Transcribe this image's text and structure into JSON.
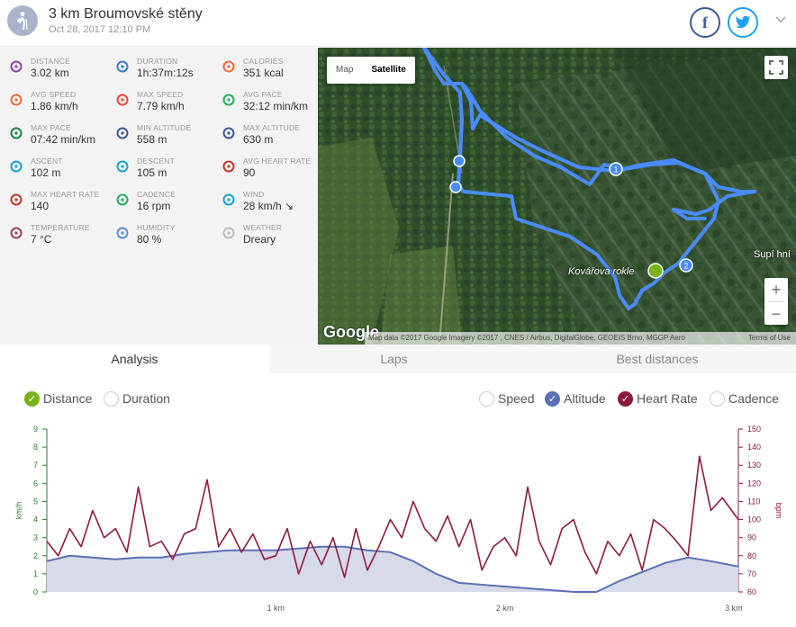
{
  "header": {
    "title": "3 km Broumovské stěny",
    "date": "Oct 28, 2017 12:10 PM"
  },
  "stats": [
    {
      "label": "DISTANCE",
      "value": "3.02 km",
      "icon": "distance-icon",
      "color": "#8e44ad"
    },
    {
      "label": "DURATION",
      "value": "1h:37m:12s",
      "icon": "stopwatch-icon",
      "color": "#3a7bd5"
    },
    {
      "label": "CALORIES",
      "value": "351 kcal",
      "icon": "flame-icon",
      "color": "#f06a3c"
    },
    {
      "label": "AVG SPEED",
      "value": "1.86 km/h",
      "icon": "speedometer-icon",
      "color": "#f06a3c"
    },
    {
      "label": "MAX SPEED",
      "value": "7.79 km/h",
      "icon": "speedometer-max-icon",
      "color": "#e74c3c"
    },
    {
      "label": "AVG PACE",
      "value": "32:12 min/km",
      "icon": "pace-icon",
      "color": "#27ae60"
    },
    {
      "label": "MAX PACE",
      "value": "07:42 min/km",
      "icon": "pace-max-icon",
      "color": "#1e8449"
    },
    {
      "label": "MIN ALTITUDE",
      "value": "558 m",
      "icon": "mountain-icon",
      "color": "#3b5998"
    },
    {
      "label": "MAX ALTITUDE",
      "value": "630 m",
      "icon": "mountain-peak-icon",
      "color": "#3b5998"
    },
    {
      "label": "ASCENT",
      "value": "102 m",
      "icon": "ascent-icon",
      "color": "#1a9fd0"
    },
    {
      "label": "DESCENT",
      "value": "105 m",
      "icon": "descent-icon",
      "color": "#1a9fd0"
    },
    {
      "label": "AVG HEART RATE",
      "value": "90",
      "icon": "heart-pulse-icon",
      "color": "#c0392b"
    },
    {
      "label": "MAX HEART RATE",
      "value": "140",
      "icon": "heart-icon",
      "color": "#c0392b"
    },
    {
      "label": "CADENCE",
      "value": "16 rpm",
      "icon": "cadence-icon",
      "color": "#27ae60"
    },
    {
      "label": "WIND",
      "value": "28 km/h ↘",
      "icon": "wind-icon",
      "color": "#1a9fd0"
    },
    {
      "label": "TEMPERATURE",
      "value": "7 °C",
      "icon": "thermometer-icon",
      "color": "#a04060"
    },
    {
      "label": "HUMIDITY",
      "value": "80 %",
      "icon": "droplets-icon",
      "color": "#5b8fd6"
    },
    {
      "label": "WEATHER",
      "value": "Dreary",
      "icon": "cloud-icon",
      "color": "#bbbbbb"
    }
  ],
  "map": {
    "type_map": "Map",
    "type_satellite": "Satellite",
    "google": "Google",
    "attribution": "Map data ©2017 Google Imagery ©2017 , CNES / Airbus, DigitalGlobe, GEOEIS Brno, MGGP Aero",
    "terms": "Terms of Use",
    "place1": "Kovářova rokle",
    "place2": "Supí hní",
    "marker1": "1",
    "marker2": "2",
    "zoom_in": "+",
    "zoom_out": "−"
  },
  "tabs": [
    "Analysis",
    "Laps",
    "Best distances"
  ],
  "toggles": {
    "distance": "Distance",
    "duration": "Duration",
    "speed": "Speed",
    "altitude": "Altitude",
    "heart_rate": "Heart Rate",
    "cadence": "Cadence"
  },
  "colors": {
    "altitude": "#5c6fb5",
    "heart_rate": "#8e1a3c",
    "distance": "#7ab317",
    "speed_axis": "#2e7d32",
    "route": "#4a8cff"
  },
  "chart_data": {
    "type": "line",
    "x_axis": {
      "label": "km",
      "ticks": [
        "1 km",
        "2 km",
        "3 km"
      ],
      "range": [
        0,
        3.02
      ]
    },
    "y_left": {
      "label": "km/h",
      "range": [
        0,
        9
      ],
      "ticks": [
        0,
        1,
        2,
        3,
        4,
        5,
        6,
        7,
        8,
        9
      ]
    },
    "y_right": {
      "label": "bpm",
      "range": [
        60,
        150
      ],
      "ticks": [
        60,
        70,
        80,
        90,
        100,
        110,
        120,
        130,
        140,
        150
      ]
    },
    "series": [
      {
        "name": "Altitude",
        "axis": "left",
        "x": [
          0,
          0.1,
          0.2,
          0.3,
          0.4,
          0.5,
          0.6,
          0.7,
          0.8,
          0.9,
          1.0,
          1.1,
          1.2,
          1.3,
          1.4,
          1.5,
          1.6,
          1.7,
          1.8,
          1.9,
          2.0,
          2.1,
          2.2,
          2.3,
          2.4,
          2.5,
          2.6,
          2.7,
          2.8,
          2.9,
          3.02
        ],
        "values": [
          1.7,
          2.0,
          1.9,
          1.8,
          1.9,
          1.9,
          2.1,
          2.2,
          2.3,
          2.3,
          2.3,
          2.4,
          2.5,
          2.5,
          2.3,
          2.2,
          1.7,
          1.0,
          0.5,
          0.4,
          0.3,
          0.2,
          0.1,
          0.0,
          0.0,
          0.6,
          1.1,
          1.6,
          1.9,
          1.7,
          1.4
        ]
      },
      {
        "name": "Heart Rate",
        "axis": "right",
        "x": [
          0,
          0.05,
          0.1,
          0.15,
          0.2,
          0.25,
          0.3,
          0.35,
          0.4,
          0.45,
          0.5,
          0.55,
          0.6,
          0.65,
          0.7,
          0.75,
          0.8,
          0.85,
          0.9,
          0.95,
          1.0,
          1.05,
          1.1,
          1.15,
          1.2,
          1.25,
          1.3,
          1.35,
          1.4,
          1.45,
          1.5,
          1.55,
          1.6,
          1.65,
          1.7,
          1.75,
          1.8,
          1.85,
          1.9,
          1.95,
          2.0,
          2.05,
          2.1,
          2.15,
          2.2,
          2.25,
          2.3,
          2.35,
          2.4,
          2.45,
          2.5,
          2.55,
          2.6,
          2.65,
          2.7,
          2.75,
          2.8,
          2.85,
          2.9,
          2.95,
          3.02
        ],
        "values": [
          88,
          80,
          95,
          85,
          105,
          90,
          95,
          82,
          118,
          85,
          88,
          78,
          92,
          95,
          122,
          85,
          95,
          82,
          92,
          78,
          80,
          95,
          70,
          88,
          75,
          90,
          68,
          95,
          72,
          85,
          100,
          90,
          110,
          95,
          88,
          102,
          85,
          100,
          72,
          85,
          90,
          80,
          118,
          88,
          75,
          95,
          100,
          82,
          70,
          88,
          80,
          92,
          72,
          100,
          95,
          88,
          80,
          135,
          105,
          112,
          100
        ]
      }
    ]
  }
}
